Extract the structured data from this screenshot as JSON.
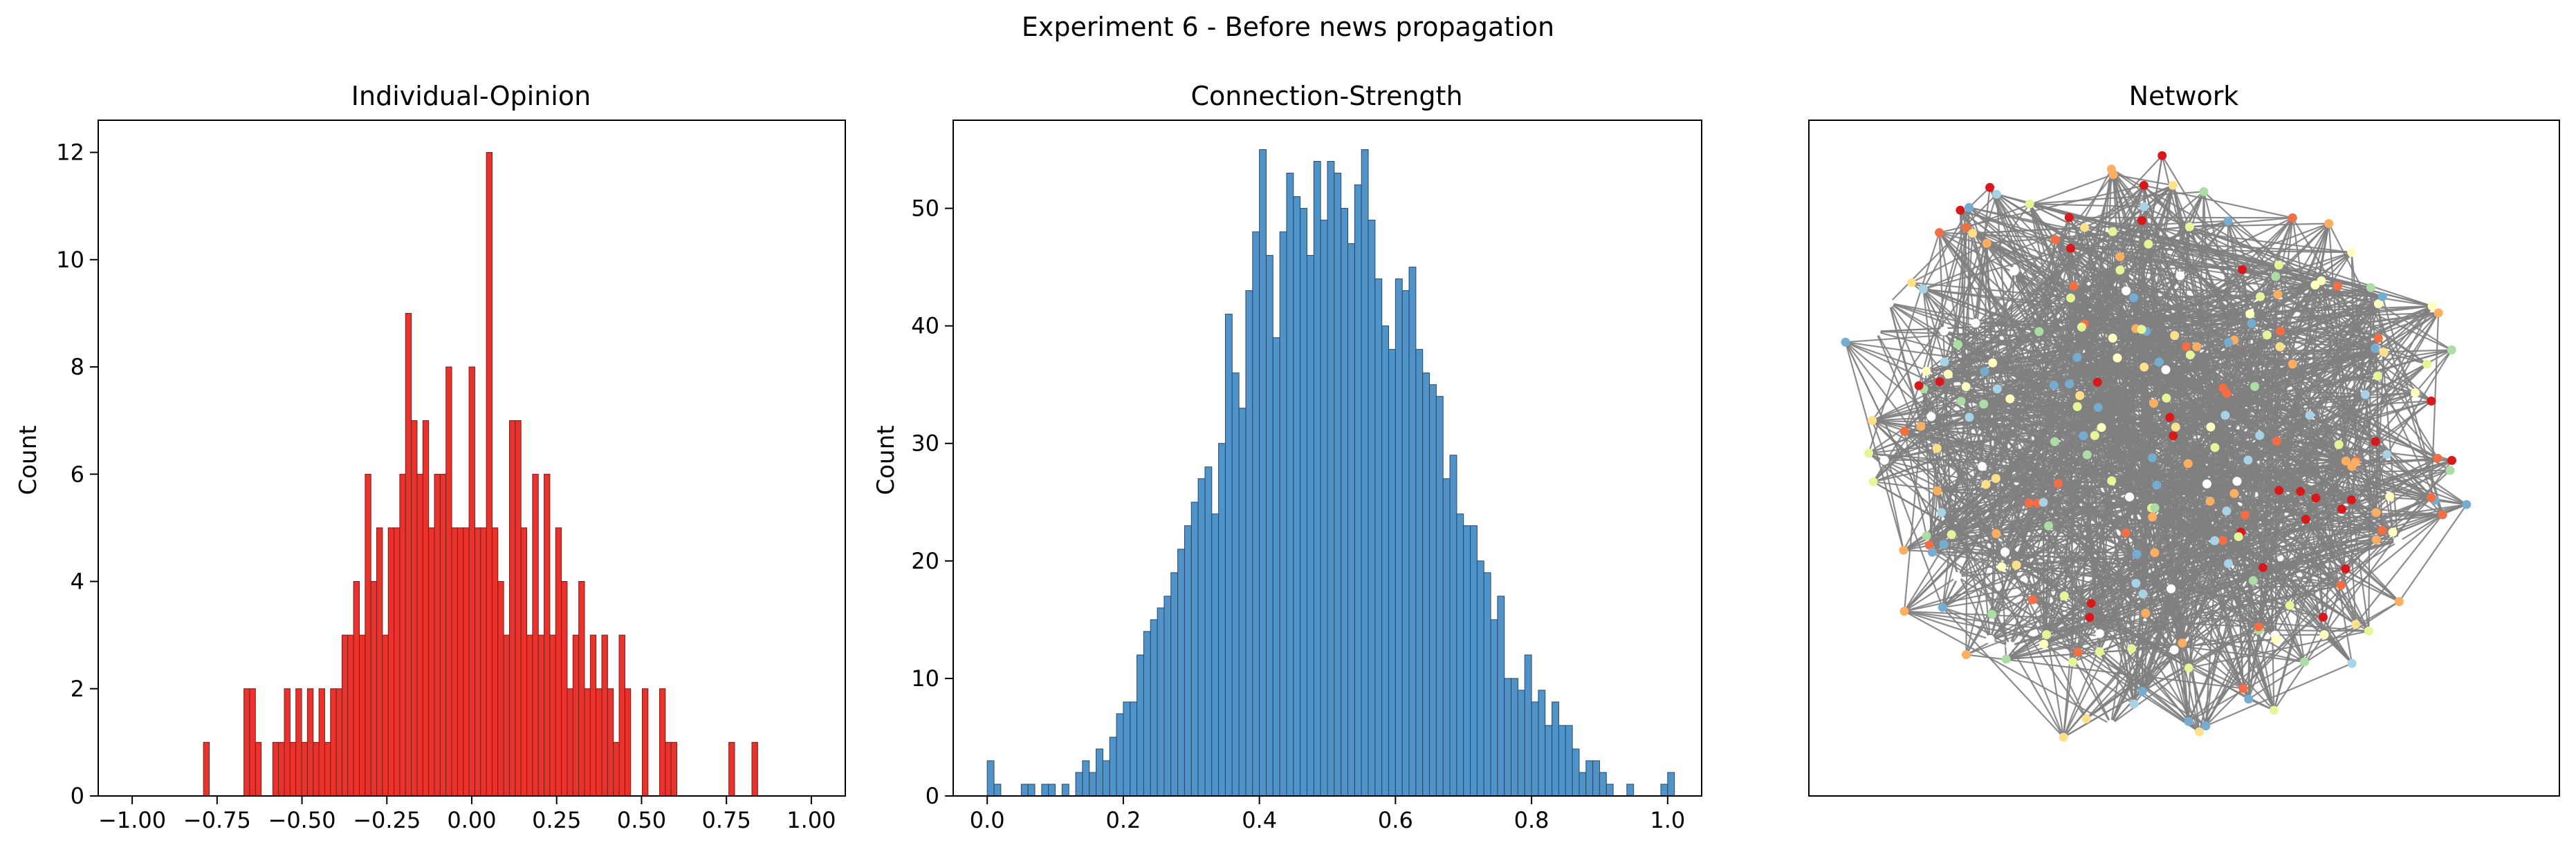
{
  "figure": {
    "suptitle": "Experiment 6 - Before news propagation"
  },
  "chart_data": [
    {
      "type": "bar",
      "title": "Individual-Opinion",
      "xlabel": "",
      "ylabel": "Count",
      "xlim": [
        -1.1,
        1.1
      ],
      "ylim": [
        0,
        12.6
      ],
      "xticks": [
        -1.0,
        -0.75,
        -0.5,
        -0.25,
        0.0,
        0.25,
        0.5,
        0.75,
        1.0
      ],
      "xtick_labels": [
        "−1.00",
        "−0.75",
        "−0.50",
        "−0.25",
        "0.00",
        "0.25",
        "0.50",
        "0.75",
        "1.00"
      ],
      "yticks": [
        0,
        2,
        4,
        6,
        8,
        10,
        12
      ],
      "ytick_labels": [
        "0",
        "2",
        "4",
        "6",
        "8",
        "10",
        "12"
      ],
      "bin_start": -0.79,
      "bin_width": 0.017,
      "values": [
        1,
        0,
        0,
        0,
        0,
        0,
        0,
        2,
        2,
        1,
        0,
        0,
        1,
        1,
        2,
        1,
        2,
        1,
        2,
        1,
        2,
        1,
        2,
        2,
        3,
        3,
        4,
        3,
        6,
        4,
        5,
        3,
        5,
        5,
        6,
        9,
        7,
        6,
        7,
        5,
        6,
        6,
        8,
        5,
        5,
        5,
        8,
        5,
        5,
        12,
        5,
        4,
        3,
        7,
        7,
        5,
        3,
        6,
        3,
        6,
        3,
        5,
        4,
        2,
        3,
        4,
        2,
        3,
        2,
        3,
        2,
        1,
        3,
        2,
        0,
        0,
        2,
        0,
        0,
        2,
        1,
        1,
        0,
        0,
        0,
        0,
        0,
        0,
        0,
        0,
        0,
        1,
        0,
        0,
        0,
        1
      ],
      "bar_color": "#e8322b",
      "edge_color": "#7a1c18",
      "grid": false
    },
    {
      "type": "bar",
      "title": "Connection-Strength",
      "xlabel": "",
      "ylabel": "Count",
      "xlim": [
        -0.05,
        1.05
      ],
      "ylim": [
        0,
        57.5
      ],
      "xticks": [
        0.0,
        0.2,
        0.4,
        0.6,
        0.8,
        1.0
      ],
      "xtick_labels": [
        "0.0",
        "0.2",
        "0.4",
        "0.6",
        "0.8",
        "1.0"
      ],
      "yticks": [
        0,
        10,
        20,
        30,
        40,
        50
      ],
      "ytick_labels": [
        "0",
        "10",
        "20",
        "30",
        "40",
        "50"
      ],
      "bin_start": 0.0,
      "bin_width": 0.01,
      "values": [
        3,
        1,
        0,
        0,
        0,
        1,
        1,
        0,
        1,
        1,
        0,
        1,
        0,
        2,
        3,
        2,
        4,
        3,
        5,
        7,
        8,
        8,
        12,
        14,
        15,
        16,
        17,
        19,
        21,
        23,
        25,
        27,
        28,
        24,
        30,
        41,
        36,
        33,
        43,
        48,
        55,
        46,
        39,
        48,
        53,
        51,
        50,
        46,
        54,
        49,
        54,
        53,
        50,
        47,
        52,
        55,
        49,
        44,
        40,
        38,
        44,
        43,
        45,
        38,
        36,
        35,
        34,
        27,
        29,
        24,
        23,
        23,
        20,
        19,
        15,
        17,
        10,
        10,
        9,
        12,
        8,
        9,
        6,
        8,
        6,
        6,
        4,
        2,
        3,
        3,
        2,
        1,
        0,
        0,
        1,
        0,
        0,
        0,
        0,
        1,
        2
      ],
      "bar_color": "#4f93c8",
      "edge_color": "#27486a",
      "grid": false
    }
  ],
  "network": {
    "title": "Network",
    "edge_color": "#808080",
    "node_palette": [
      "#d7191c",
      "#f46d43",
      "#fdae61",
      "#fee08b",
      "#ffffbf",
      "#e6f598",
      "#abdda4",
      "#a6d4e6",
      "#74add1",
      "#ffffff"
    ]
  }
}
